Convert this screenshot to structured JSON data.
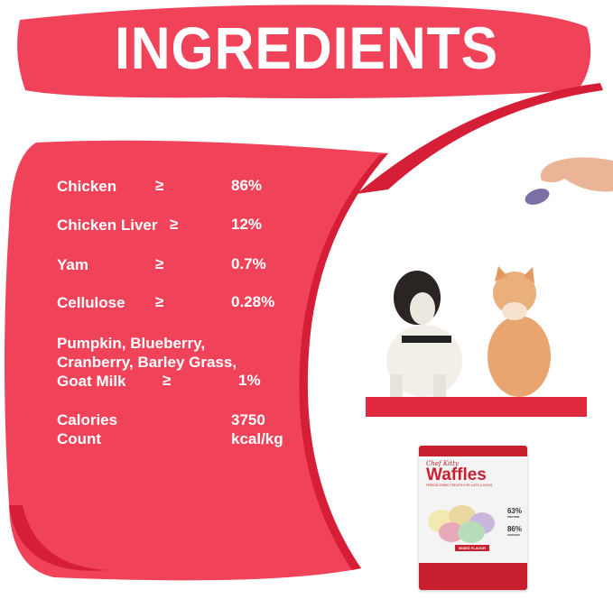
{
  "title": "INGREDIENTS",
  "colors": {
    "primary": "#f0435a",
    "dark": "#d61f36",
    "shelf": "#e0283e"
  },
  "ingredients": [
    {
      "name": "Chicken",
      "symbol": "≥",
      "value": "86%"
    },
    {
      "name": "Chicken Liver",
      "symbol": "≥",
      "value": "12%"
    },
    {
      "name": "Yam",
      "symbol": "≥",
      "value": "0.7%"
    },
    {
      "name": "Cellulose",
      "symbol": "≥",
      "value": "0.28%"
    },
    {
      "name_lines": [
        "Pumpkin, Blueberry,",
        "Cranberry, Barley Grass,",
        "Goat Milk"
      ],
      "symbol": "≥",
      "value": "1%"
    }
  ],
  "calories": {
    "label_lines": [
      "Calories",
      "Count"
    ],
    "value_lines": [
      "3750",
      "kcal/kg"
    ]
  },
  "package": {
    "brand": "Chef Kitty",
    "name": "Waffles",
    "subtitle": "FREEZE-DRIED TREATS FOR CATS & DOGS",
    "protein": "63%",
    "protein_label": "PROTEIN",
    "chicken": "86%",
    "chicken_label": "CHICKEN",
    "flavor": "MIXED FLAVOR"
  }
}
